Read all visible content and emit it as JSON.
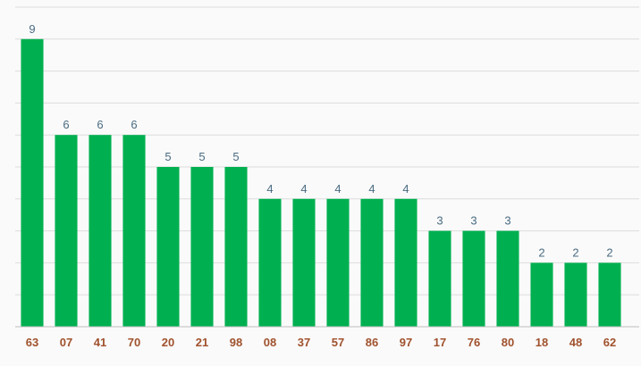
{
  "chart_data": {
    "type": "bar",
    "title": "",
    "xlabel": "",
    "ylabel": "",
    "categories": [
      "63",
      "07",
      "41",
      "70",
      "20",
      "21",
      "98",
      "08",
      "37",
      "57",
      "86",
      "97",
      "17",
      "76",
      "80",
      "18",
      "48",
      "62"
    ],
    "values": [
      9,
      6,
      6,
      6,
      5,
      5,
      5,
      4,
      4,
      4,
      4,
      4,
      3,
      3,
      3,
      2,
      2,
      2
    ],
    "ylim": [
      0,
      10
    ],
    "grid": true,
    "legend": "none",
    "colors": {
      "bar": "#00b050",
      "value_label": "#4a6b82",
      "tick_label": "#a0522d",
      "background": "#fafafa"
    }
  }
}
